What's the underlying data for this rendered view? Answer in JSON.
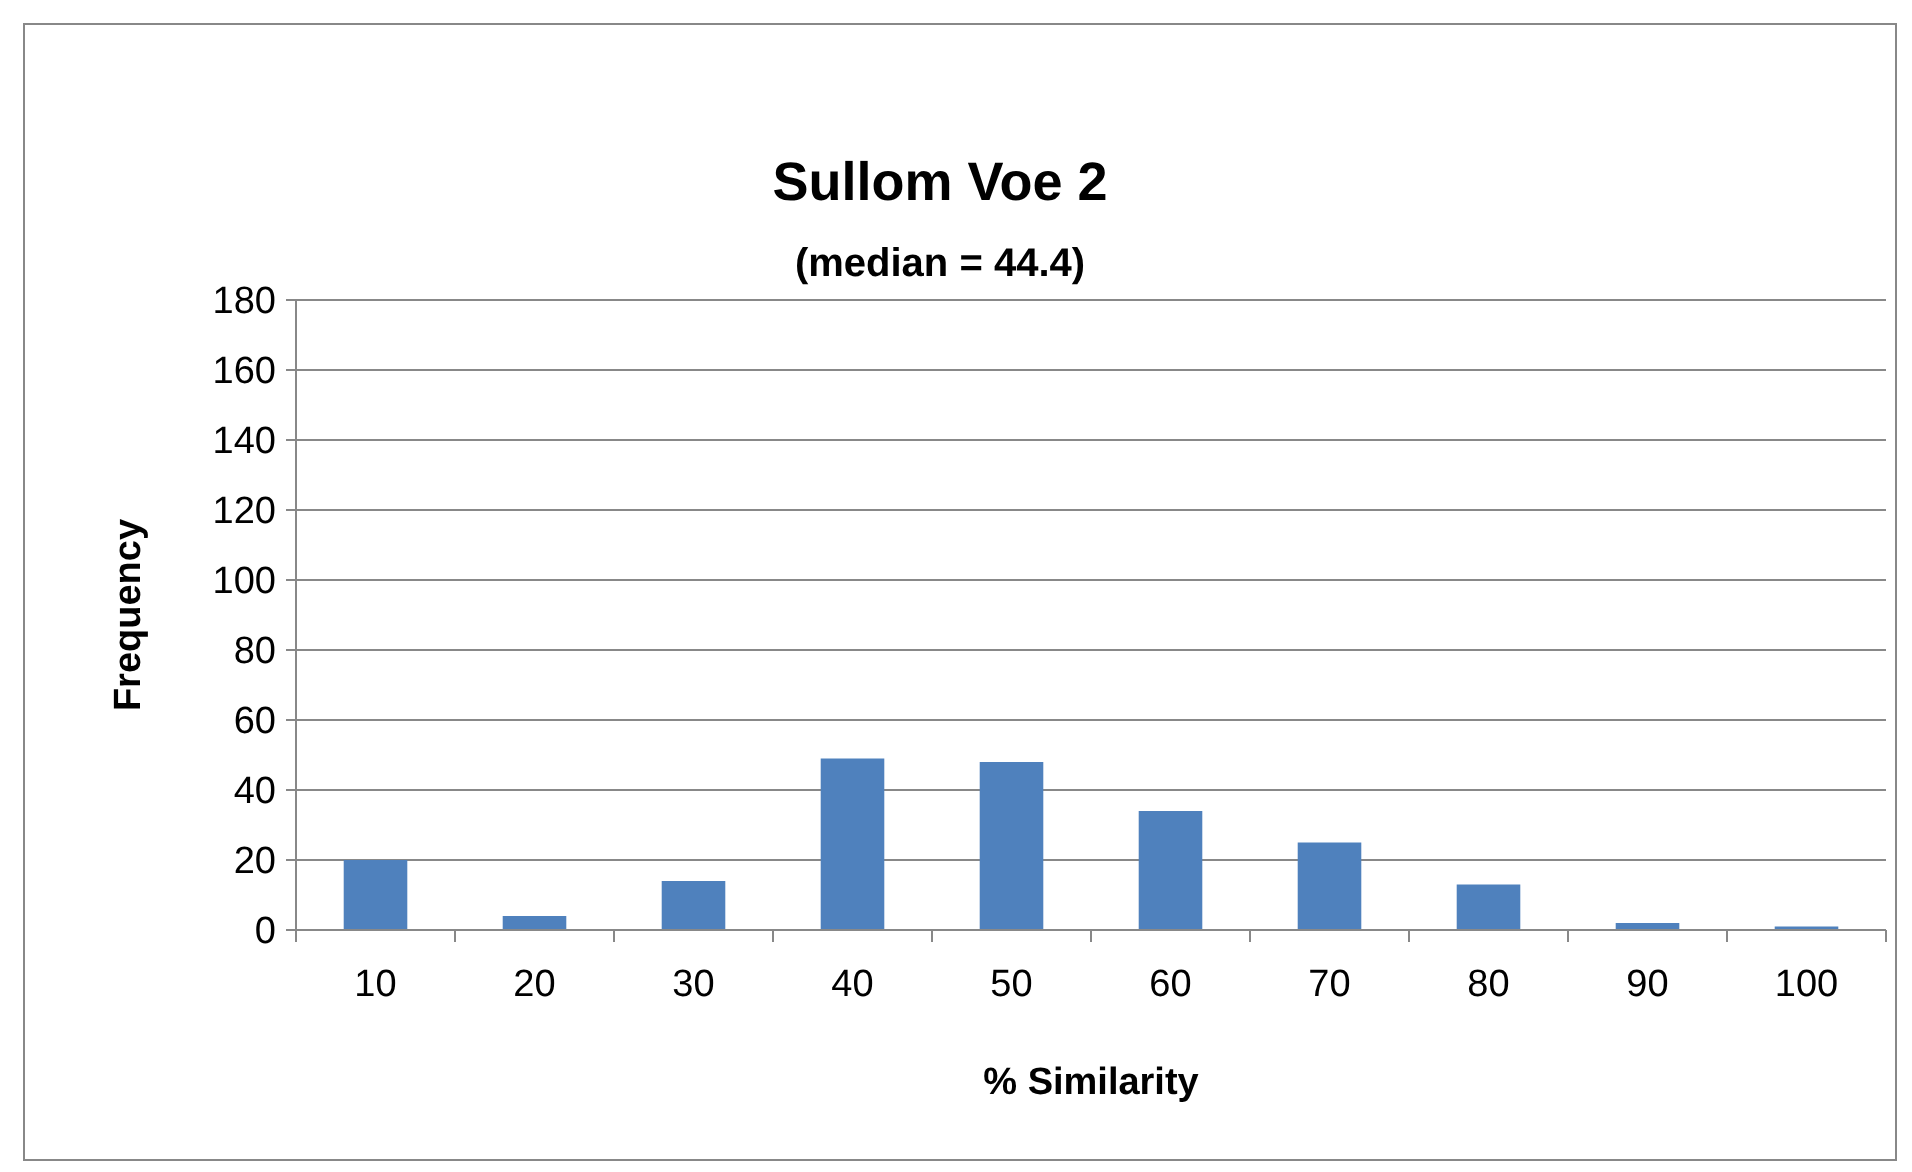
{
  "chart_data": {
    "type": "bar",
    "title": "Sullom Voe  2",
    "subtitle": "(median = 44.4)",
    "xlabel": "% Similarity",
    "ylabel": "Frequency",
    "categories": [
      "10",
      "20",
      "30",
      "40",
      "50",
      "60",
      "70",
      "80",
      "90",
      "100"
    ],
    "values": [
      20,
      4,
      14,
      49,
      48,
      34,
      25,
      13,
      2,
      1
    ],
    "color": "#4f81bd",
    "ylim": [
      0,
      180
    ],
    "yticks": [
      0,
      20,
      40,
      60,
      80,
      100,
      120,
      140,
      160,
      180
    ],
    "grid": "y"
  }
}
